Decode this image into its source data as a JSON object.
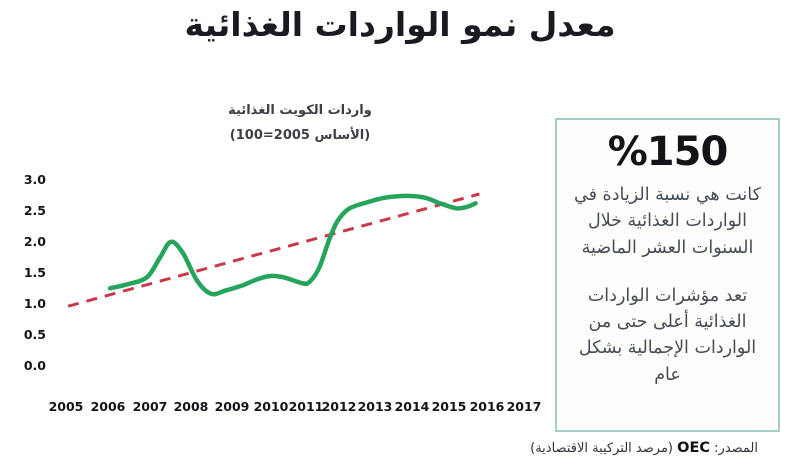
{
  "title": "معدل نمو الواردات الغذائية",
  "chart": {
    "subtitle_line1": "واردات الكويت الغذائية",
    "subtitle_line2": "(الأساس 2005=100)"
  },
  "chart_data": {
    "type": "line",
    "title": "واردات الكويت الغذائية (الأساس 2005=100)",
    "xlim": [
      2005,
      2017
    ],
    "ylim": [
      0.0,
      3.0
    ],
    "grid": false,
    "legend": "none",
    "x_ticks": [
      "2005",
      "2006",
      "2007",
      "2008",
      "2009",
      "2010",
      "2011",
      "2012",
      "2013",
      "2014",
      "2015",
      "2016",
      "2017"
    ],
    "y_ticks": [
      "3.0",
      "2.5",
      "2.0",
      "1.5",
      "1.0",
      "0.5",
      "0.0"
    ],
    "series": [
      {
        "name": "food_imports_index",
        "line_style": "solid-smooth",
        "color": "#27a45c",
        "x": [
          2006.05,
          2006.5,
          2006.93,
          2007.24,
          2007.51,
          2007.8,
          2008.15,
          2008.49,
          2008.83,
          2009.24,
          2009.67,
          2010.03,
          2010.4,
          2010.9,
          2011.1,
          2011.4,
          2011.7,
          2011.94,
          2012.27,
          2012.8,
          2013.27,
          2013.84,
          2014.35,
          2014.8,
          2015.19,
          2015.46,
          2015.7
        ],
        "y": [
          1.27,
          1.34,
          1.45,
          1.76,
          2.02,
          1.84,
          1.39,
          1.18,
          1.23,
          1.31,
          1.42,
          1.47,
          1.44,
          1.35,
          1.37,
          1.6,
          2.05,
          2.34,
          2.55,
          2.66,
          2.73,
          2.76,
          2.73,
          2.63,
          2.56,
          2.58,
          2.64
        ]
      },
      {
        "name": "trend_line",
        "line_style": "dashed",
        "color": "#c9394a",
        "x": [
          2005.05,
          2015.8
        ],
        "y": [
          0.98,
          2.79
        ]
      }
    ]
  },
  "highlight_box": {
    "value": "%150",
    "paragraph1": "كانت هي نسبة الزيادة في الواردات الغذائية خلال السنوات العشر الماضية",
    "paragraph2": "تعد مؤشرات الواردات الغذائية أعلى حتى من الواردات الإجمالية بشكل عام",
    "border_color": "#a6cdc4"
  },
  "source": {
    "prefix": "المصدر:",
    "org": "OEC",
    "suffix": "(مرصد التركيبة الاقتصادية)"
  }
}
